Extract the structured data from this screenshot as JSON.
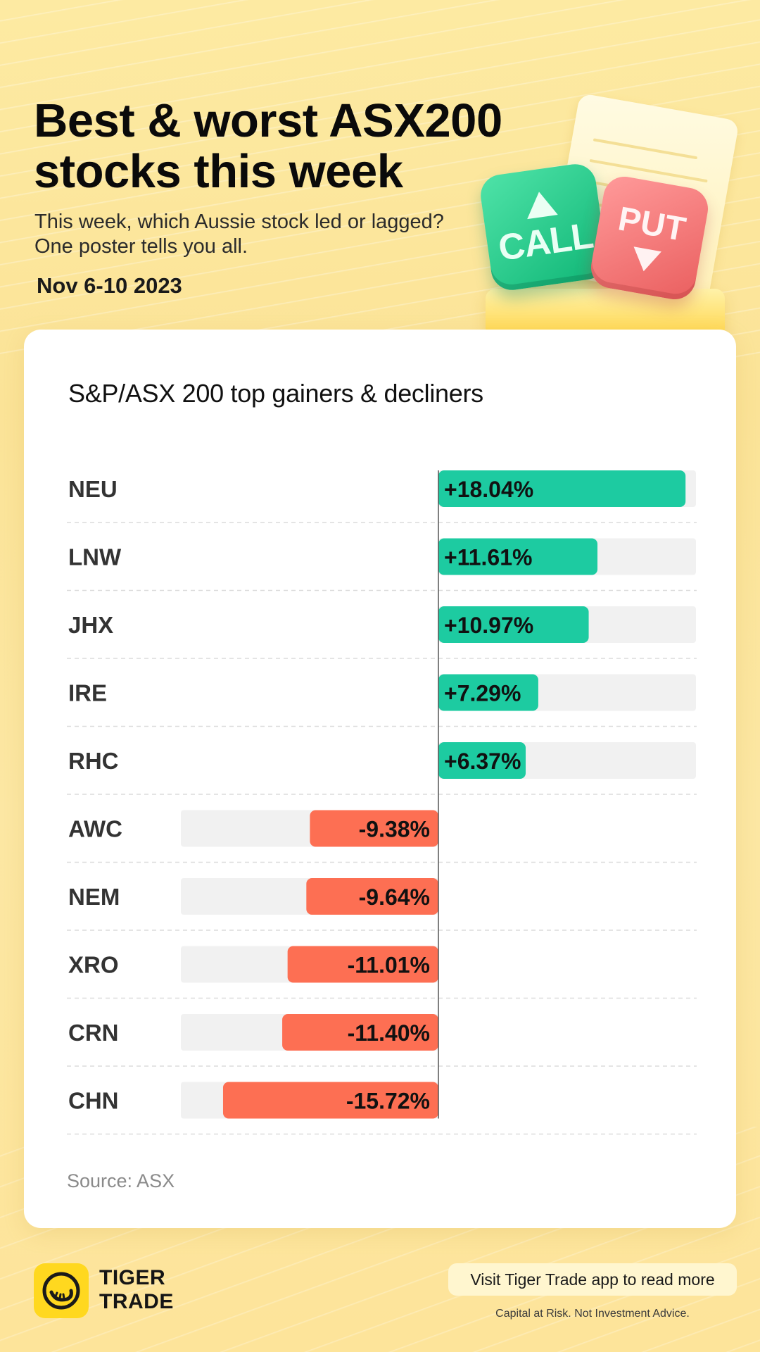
{
  "header": {
    "title_line1": "Best & worst ASX200",
    "title_line2": "stocks this week",
    "subtitle_line1": "This week, which Aussie stock led or lagged?",
    "subtitle_line2": "One poster tells you all.",
    "date": "Nov 6-10 2023"
  },
  "illustration": {
    "call_label": "CALL",
    "put_label": "PUT"
  },
  "chart_data": {
    "type": "bar",
    "title": "S&P/ASX 200 top gainers & decliners",
    "categories": [
      "NEU",
      "LNW",
      "JHX",
      "IRE",
      "RHC",
      "AWC",
      "NEM",
      "XRO",
      "CRN",
      "CHN"
    ],
    "values": [
      18.04,
      11.61,
      10.97,
      7.29,
      6.37,
      -9.38,
      -9.64,
      -11.01,
      -11.4,
      -15.72
    ],
    "labels": [
      "+18.04%",
      "+11.61%",
      "+10.97%",
      "+7.29%",
      "+6.37%",
      "-9.38%",
      "-9.64%",
      "-11.01%",
      "-11.40%",
      "-15.72%"
    ],
    "xlim": [
      -18.8,
      18.8
    ],
    "colors": {
      "positive": "#1dcba1",
      "negative": "#fd6f53",
      "track": "#f1f1f1"
    }
  },
  "source": "Source: ASX",
  "footer": {
    "brand_line1": "TIGER",
    "brand_line2": "TRADE",
    "cta": "Visit Tiger Trade app to read more",
    "disclaimer": "Capital at Risk. Not Investment Advice."
  }
}
